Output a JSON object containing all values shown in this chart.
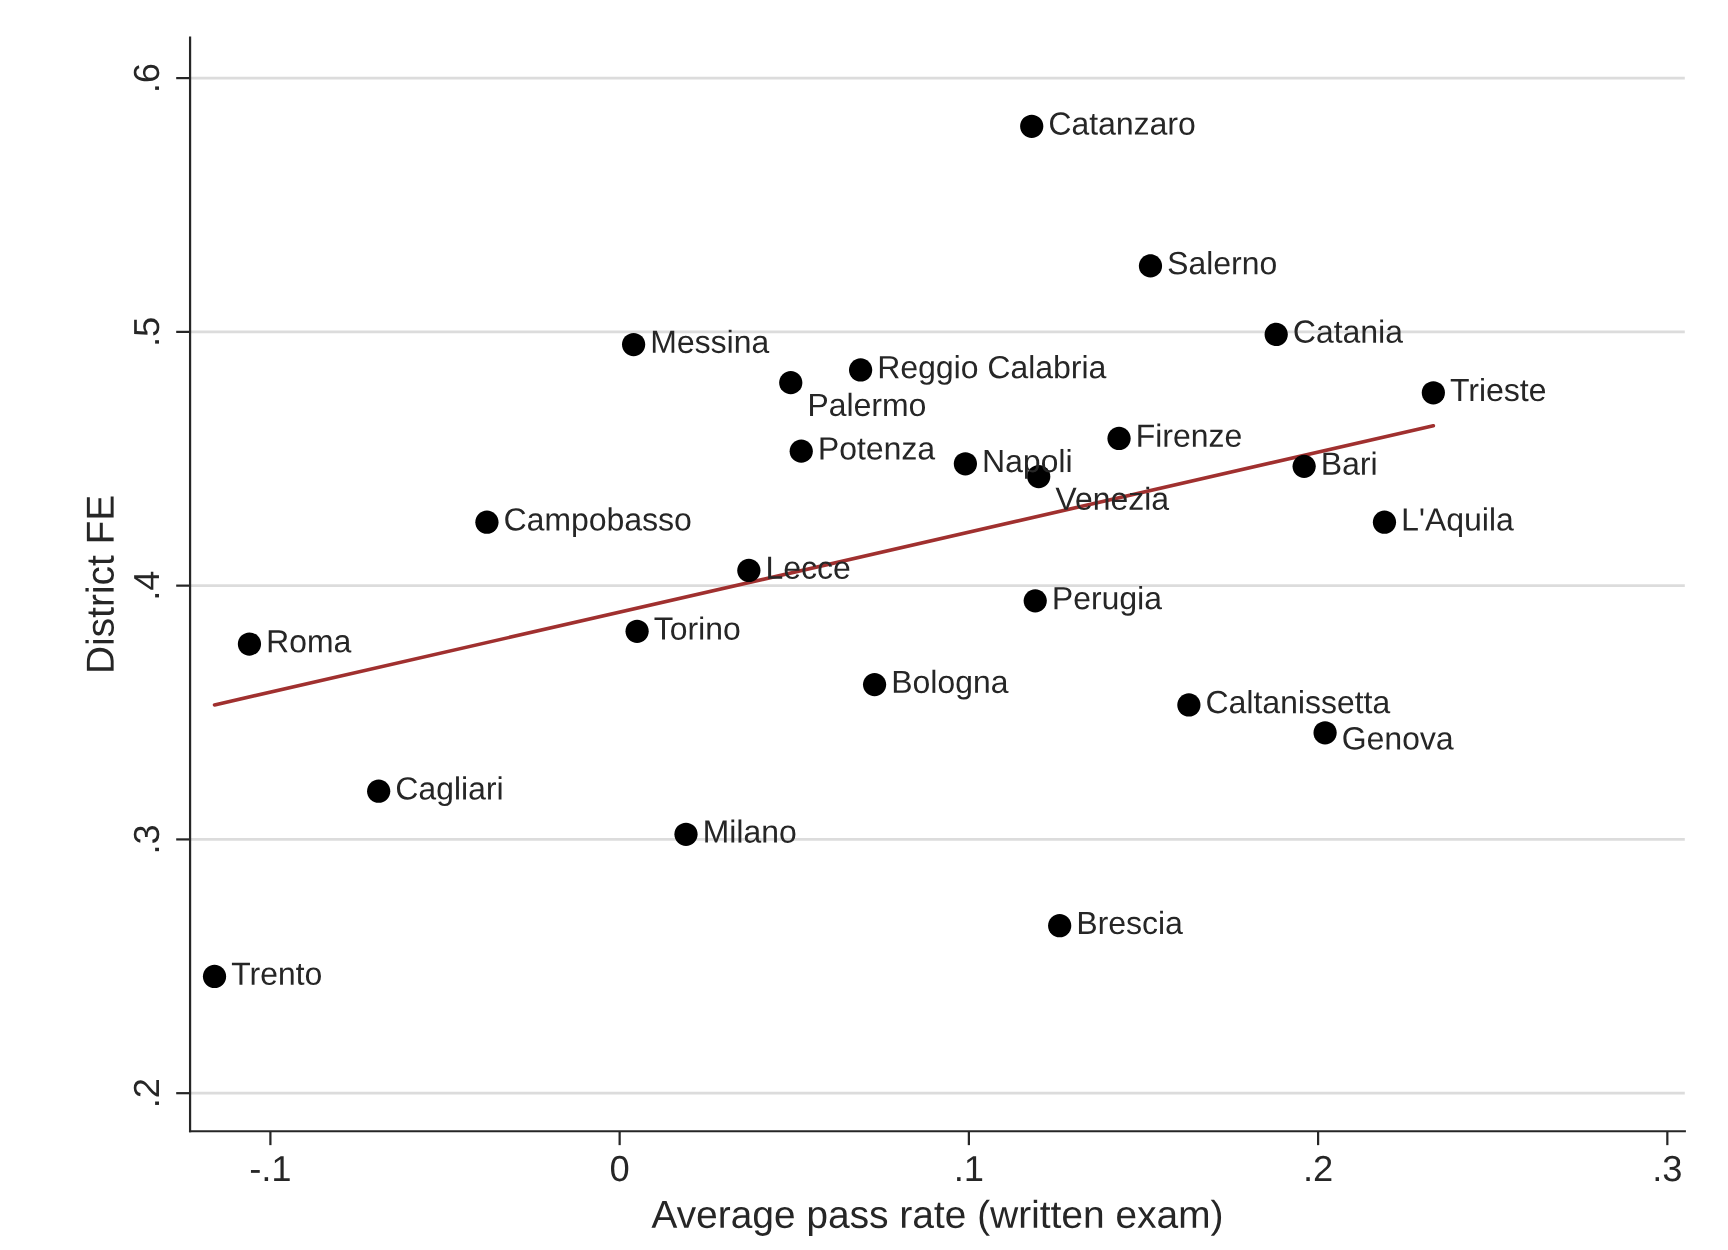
{
  "chart_data": {
    "type": "scatter",
    "xlabel": "Average pass rate (written exam)",
    "ylabel": "District FE",
    "xlim": [
      -0.123,
      0.305
    ],
    "ylim": [
      0.185,
      0.616
    ],
    "xticks": [
      {
        "value": -0.1,
        "label": "-.1"
      },
      {
        "value": 0,
        "label": "0"
      },
      {
        "value": 0.1,
        "label": ".1"
      },
      {
        "value": 0.2,
        "label": ".2"
      },
      {
        "value": 0.3,
        "label": ".3"
      }
    ],
    "yticks": [
      {
        "value": 0.2,
        "label": ".2"
      },
      {
        "value": 0.3,
        "label": ".3"
      },
      {
        "value": 0.4,
        "label": ".4"
      },
      {
        "value": 0.5,
        "label": ".5"
      },
      {
        "value": 0.6,
        "label": ".6"
      }
    ],
    "grid": "y",
    "legend": false,
    "series": [
      {
        "marker": "circle",
        "color": "#000000",
        "x": [
          0.118,
          0.152,
          0.188,
          0.233,
          0.004,
          0.069,
          0.049,
          0.052,
          0.099,
          0.12,
          0.143,
          0.196,
          0.219,
          -0.038,
          0.037,
          0.119,
          -0.106,
          0.005,
          0.073,
          0.163,
          0.202,
          -0.069,
          0.019,
          0.126,
          -0.116
        ],
        "values": [
          0.581,
          0.526,
          0.499,
          0.476,
          0.495,
          0.485,
          0.48,
          0.453,
          0.448,
          0.443,
          0.458,
          0.447,
          0.425,
          0.425,
          0.406,
          0.394,
          0.377,
          0.382,
          0.361,
          0.353,
          0.342,
          0.319,
          0.302,
          0.266,
          0.246
        ]
      },
      {
        "type": "line",
        "color": "#a0302f",
        "x": [
          -0.116,
          0.233
        ],
        "values": [
          0.353,
          0.463
        ]
      }
    ],
    "annotations": [
      {
        "text": "Catanzaro",
        "x": 0.118,
        "y": 0.581
      },
      {
        "text": "Salerno",
        "x": 0.152,
        "y": 0.526
      },
      {
        "text": "Catania",
        "x": 0.188,
        "y": 0.499
      },
      {
        "text": "Trieste",
        "x": 0.233,
        "y": 0.476
      },
      {
        "text": "Messina",
        "x": 0.004,
        "y": 0.495
      },
      {
        "text": "Reggio Calabria",
        "x": 0.069,
        "y": 0.485
      },
      {
        "text": "Palermo",
        "x": 0.049,
        "y": 0.48
      },
      {
        "text": "Potenza",
        "x": 0.052,
        "y": 0.453
      },
      {
        "text": "Napoli",
        "x": 0.099,
        "y": 0.448
      },
      {
        "text": "Venezia",
        "x": 0.12,
        "y": 0.443
      },
      {
        "text": "Firenze",
        "x": 0.143,
        "y": 0.458
      },
      {
        "text": "Bari",
        "x": 0.196,
        "y": 0.447
      },
      {
        "text": "L'Aquila",
        "x": 0.219,
        "y": 0.425
      },
      {
        "text": "Campobasso",
        "x": -0.038,
        "y": 0.425
      },
      {
        "text": "Lecce",
        "x": 0.037,
        "y": 0.406
      },
      {
        "text": "Perugia",
        "x": 0.119,
        "y": 0.394
      },
      {
        "text": "Roma",
        "x": -0.106,
        "y": 0.377
      },
      {
        "text": "Torino",
        "x": 0.005,
        "y": 0.382
      },
      {
        "text": "Bologna",
        "x": 0.073,
        "y": 0.361
      },
      {
        "text": "Caltanissetta",
        "x": 0.163,
        "y": 0.353
      },
      {
        "text": "Genova",
        "x": 0.202,
        "y": 0.342
      },
      {
        "text": "Cagliari",
        "x": -0.069,
        "y": 0.319
      },
      {
        "text": "Milano",
        "x": 0.019,
        "y": 0.302
      },
      {
        "text": "Brescia",
        "x": 0.126,
        "y": 0.266
      },
      {
        "text": "Trento",
        "x": -0.116,
        "y": 0.246
      }
    ]
  }
}
